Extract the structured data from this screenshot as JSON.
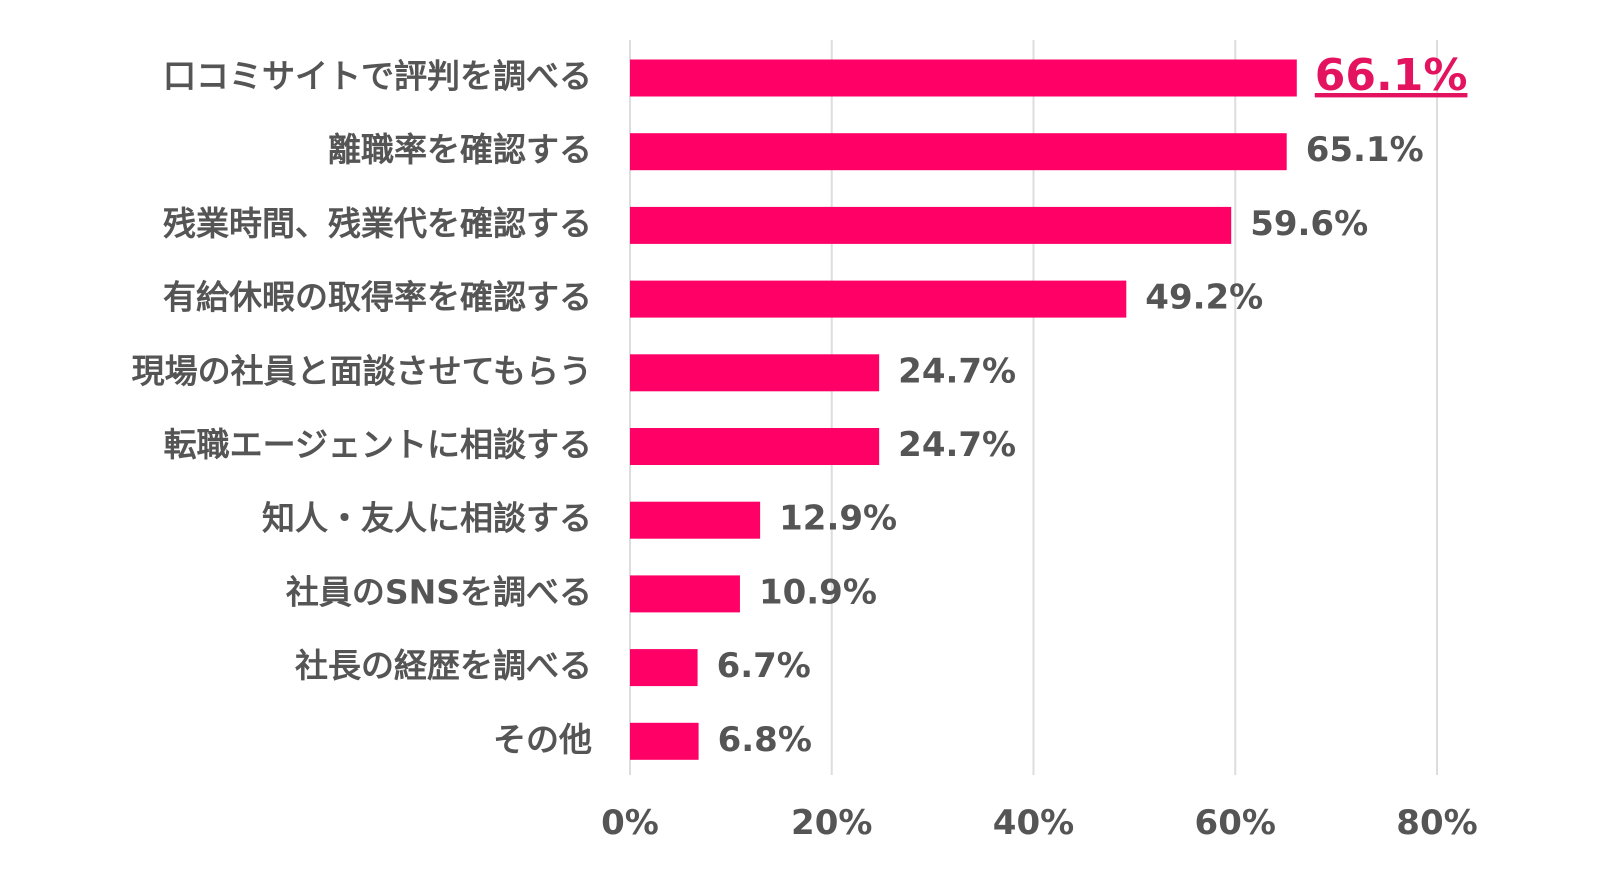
{
  "chart_data": {
    "type": "bar",
    "orientation": "horizontal",
    "categories": [
      "口コミサイトで評判を調べる",
      "離職率を確認する",
      "残業時間、残業代を確認する",
      "有給休暇の取得率を確認する",
      "現場の社員と面談させてもらう",
      "転職エージェントに相談する",
      "知人・友人に相談する",
      "社員のSNSを調べる",
      "社長の経歴を調べる",
      "その他"
    ],
    "values": [
      66.1,
      65.1,
      59.6,
      49.2,
      24.7,
      24.7,
      12.9,
      10.9,
      6.7,
      6.8
    ],
    "value_labels": [
      "66.1%",
      "65.1%",
      "59.6%",
      "49.2%",
      "24.7%",
      "24.7%",
      "12.9%",
      "10.9%",
      "6.7%",
      "6.8%"
    ],
    "highlight_index": 0,
    "xlim": [
      0,
      80
    ],
    "ticks": [
      0,
      20,
      40,
      60,
      80
    ],
    "tick_labels": [
      "0%",
      "20%",
      "40%",
      "60%",
      "80%"
    ],
    "grid": true,
    "colors": {
      "bar": "#ff0066",
      "highlight_text": "#e4135f",
      "text": "#555555",
      "grid": "#dddddd"
    }
  }
}
